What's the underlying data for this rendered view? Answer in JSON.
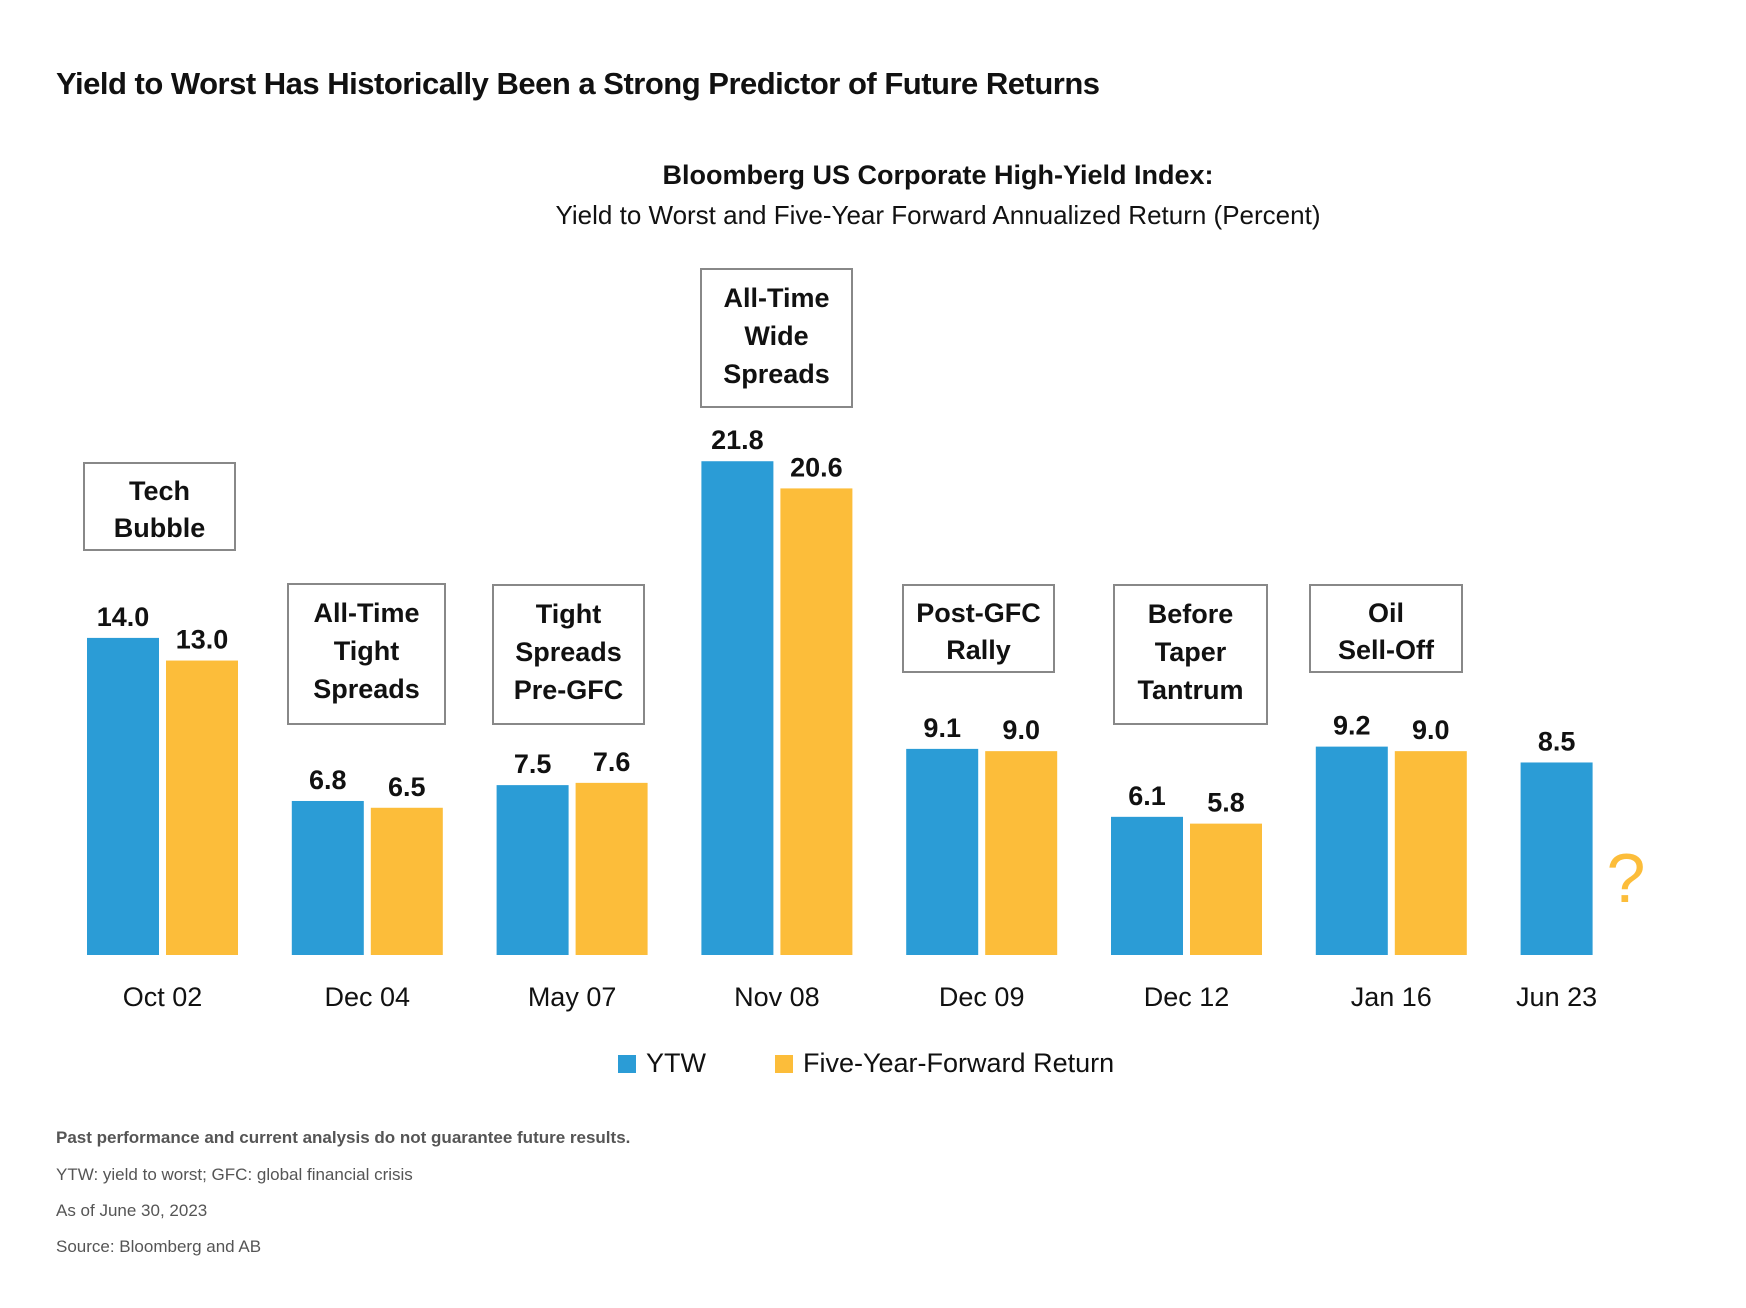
{
  "title": "Yield to Worst Has Historically Been a Strong Predictor of Future Returns",
  "chart_data": {
    "type": "bar",
    "title": "Bloomberg US Corporate High-Yield Index:",
    "subtitle": "Yield to Worst and Five-Year Forward Annualized Return (Percent)",
    "xlabel": "",
    "ylabel": "",
    "ylim": [
      0,
      22
    ],
    "grid": false,
    "legend_position": "bottom",
    "categories": [
      "Oct 02",
      "Dec 04",
      "May 07",
      "Nov 08",
      "Dec 09",
      "Dec 12",
      "Jan 16",
      "Jun 23"
    ],
    "series": [
      {
        "name": "YTW",
        "color": "#2b9cd6",
        "values": [
          14.0,
          6.8,
          7.5,
          21.8,
          9.1,
          6.1,
          9.2,
          8.5
        ]
      },
      {
        "name": "Five-Year-Forward Return",
        "color": "#fcbd3a",
        "values": [
          13.0,
          6.5,
          7.6,
          20.6,
          9.0,
          5.8,
          9.0,
          null
        ]
      }
    ],
    "annotations": [
      [
        "Tech",
        "Bubble"
      ],
      [
        "All-Time",
        "Tight",
        "Spreads"
      ],
      [
        "Tight",
        "Spreads",
        "Pre-GFC"
      ],
      [
        "All-Time",
        "Wide",
        "Spreads"
      ],
      [
        "Post-GFC",
        "Rally"
      ],
      [
        "Before",
        "Taper",
        "Tantrum"
      ],
      [
        "Oil",
        "Sell-Off"
      ],
      null
    ],
    "unknown_marker": "?"
  },
  "footnotes": [
    "Past performance and current analysis do not guarantee future results.",
    "YTW: yield to worst; GFC: global financial crisis",
    "As of  June 30, 2023",
    "Source: Bloomberg and AB"
  ]
}
